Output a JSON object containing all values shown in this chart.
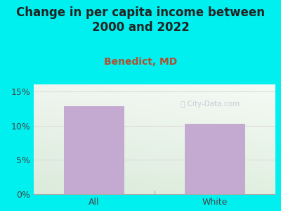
{
  "title": "Change in per capita income between\n2000 and 2022",
  "subtitle": "Benedict, MD",
  "categories": [
    "All",
    "White"
  ],
  "values": [
    12.8,
    10.3
  ],
  "bar_color": "#c4aad0",
  "title_fontsize": 12,
  "subtitle_fontsize": 10,
  "subtitle_color": "#b05030",
  "tick_label_fontsize": 9,
  "ylim": [
    0,
    16
  ],
  "yticks": [
    0,
    5,
    10,
    15
  ],
  "ytick_labels": [
    "0%",
    "5%",
    "10%",
    "15%"
  ],
  "background_outer": "#00f0f0",
  "bg_color_topleft": "#e8f5e8",
  "bg_color_topright": "#f5f5f5",
  "bg_color_bottom": "#d8eed8",
  "grid_color": "#dddddd",
  "watermark": "City-Data.com",
  "title_color": "#222222"
}
